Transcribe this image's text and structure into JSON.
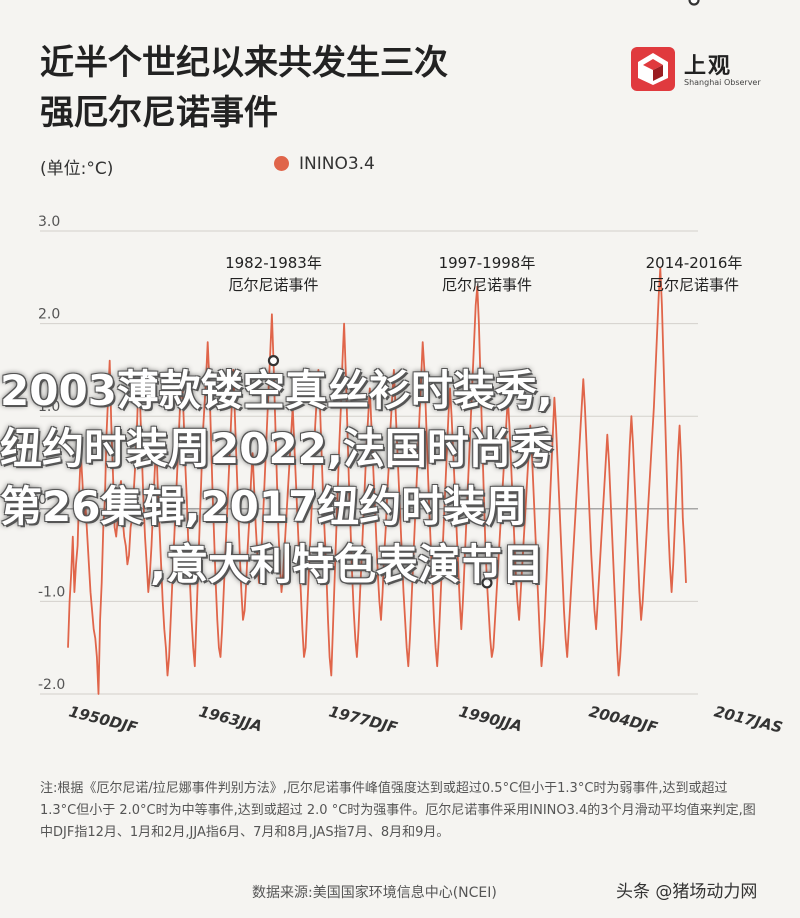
{
  "title": {
    "line1": "近半个世纪以来共发生三次",
    "line2": "强厄尔尼诺事件"
  },
  "logo": {
    "name": "上观",
    "subtitle": "Shanghai Observer"
  },
  "unit": "(单位:°C)",
  "legend": {
    "label": "ININO3.4",
    "color": "#e0654a"
  },
  "overlay_text": [
    "2003薄款镂空真丝衫时装秀,",
    "纽约时装周2022,法国时尚秀",
    "第26集辑,2017纽约时装周",
    ",意大利特色表演节目"
  ],
  "note": "注:根据《厄尔尼诺/拉尼娜事件判别方法》,厄尔尼诺事件峰值强度达到或超过0.5°C但小于1.3°C时为弱事件,达到或超过 1.3°C但小于 2.0°C时为中等事件,达到或超过 2.0 °C时为强事件。厄尔尼诺事件采用ININO3.4的3个月滑动平均值来判定,图中DJF指12月、1月和2月,JJA指6月、7月和8月,JAS指7月、8月和9月。",
  "source": "数据来源:美国国家环境信息中心(NCEI)",
  "watermark": "头条 @猪场动力网",
  "chart_data": {
    "type": "line",
    "series": [
      {
        "name": "ININO3.4",
        "color": "#e0654a"
      }
    ],
    "ylim": [
      -2.0,
      3.0
    ],
    "y_ticks": [
      "3.0",
      "2.0",
      "1.0",
      "0",
      "-1.0",
      "-2.0"
    ],
    "x_tick_labels": [
      "1950DJF",
      "1963JJA",
      "1977DJF",
      "1990JJA",
      "2004DJF",
      "2017JAS"
    ],
    "x_tick_index": [
      0,
      81,
      162,
      243,
      324,
      402
    ],
    "grid": true,
    "values": [
      -1.5,
      -1.0,
      -0.7,
      -0.3,
      -0.9,
      -0.6,
      -0.4,
      0.2,
      0.6,
      0.3,
      -0.1,
      0.0,
      -0.3,
      -0.6,
      -0.9,
      -1.1,
      -1.3,
      -1.4,
      -1.6,
      -2.0,
      -1.2,
      -0.8,
      -0.2,
      0.1,
      0.8,
      1.2,
      1.6,
      0.9,
      0.4,
      -0.2,
      -0.3,
      -0.1,
      0.2,
      0.3,
      -0.1,
      -0.3,
      -0.4,
      -0.6,
      -0.5,
      -0.2,
      -0.1,
      0.2,
      0.5,
      0.9,
      1.4,
      1.1,
      0.6,
      0.1,
      -0.3,
      -0.6,
      -0.9,
      -0.7,
      -0.4,
      0.0,
      0.4,
      0.7,
      0.2,
      -0.2,
      -0.6,
      -1.0,
      -1.3,
      -1.5,
      -1.8,
      -1.6,
      -1.2,
      -0.8,
      -0.4,
      0.0,
      0.4,
      0.8,
      1.2,
      1.4,
      1.0,
      0.5,
      0.1,
      -0.4,
      -0.8,
      -1.2,
      -1.5,
      -1.7,
      -1.2,
      -0.7,
      -0.2,
      0.3,
      0.8,
      1.1,
      1.4,
      1.8,
      1.4,
      0.8,
      0.2,
      -0.3,
      -0.8,
      -1.2,
      -1.5,
      -1.6,
      -1.3,
      -0.9,
      -0.5,
      -0.1,
      0.3,
      0.7,
      1.1,
      1.5,
      1.0,
      0.5,
      0.0,
      -0.5,
      -0.9,
      -1.2,
      -1.1,
      -0.8,
      -0.4,
      -0.1,
      0.3,
      0.6,
      0.2,
      -0.2,
      -0.5,
      -0.8,
      -0.6,
      -0.3,
      0.1,
      0.5,
      0.9,
      1.3,
      1.7,
      2.1,
      1.6,
      1.0,
      0.4,
      -0.2,
      -0.6,
      -0.9,
      -0.7,
      -0.4,
      -0.1,
      0.2,
      0.5,
      0.8,
      1.1,
      0.7,
      0.3,
      -0.1,
      -0.5,
      -0.9,
      -1.3,
      -1.6,
      -1.5,
      -1.1,
      -0.7,
      -0.3,
      0.1,
      0.5,
      0.9,
      1.2,
      1.5,
      1.1,
      0.6,
      0.1,
      -0.3,
      -0.7,
      -1.2,
      -1.6,
      -1.8,
      -1.3,
      -0.8,
      -0.3,
      0.2,
      0.7,
      1.1,
      1.6,
      2.0,
      1.5,
      0.9,
      0.3,
      -0.2,
      -0.7,
      -1.1,
      -1.4,
      -1.6,
      -1.3,
      -0.9,
      -0.5,
      -0.1,
      0.3,
      0.7,
      1.0,
      1.3,
      0.9,
      0.5,
      0.1,
      -0.3,
      -0.7,
      -1.0,
      -1.2,
      -0.9,
      -0.5,
      -0.2,
      0.2,
      0.5,
      0.9,
      1.2,
      1.5,
      1.1,
      0.7,
      0.3,
      -0.1,
      -0.5,
      -0.9,
      -1.2,
      -1.5,
      -1.7,
      -1.4,
      -1.0,
      -0.6,
      -0.2,
      0.2,
      0.6,
      1.0,
      1.4,
      1.8,
      1.5,
      1.0,
      0.5,
      0.0,
      -0.4,
      -0.8,
      -1.2,
      -1.5,
      -1.7,
      -1.4,
      -1.0,
      -0.6,
      -0.2,
      0.2,
      0.6,
      1.0,
      1.3,
      1.0,
      0.6,
      0.2,
      -0.2,
      -0.6,
      -1.0,
      -1.3,
      -1.0,
      -0.6,
      -0.2,
      0.2,
      0.6,
      1.0,
      1.4,
      1.8,
      2.2,
      2.4,
      2.0,
      1.4,
      0.8,
      0.2,
      -0.4,
      -0.8,
      -1.1,
      -1.4,
      -1.6,
      -1.5,
      -1.2,
      -0.9,
      -0.6,
      -0.3,
      0.0,
      0.3,
      0.6,
      0.9,
      1.2,
      0.9,
      0.5,
      0.1,
      -0.3,
      -0.7,
      -1.0,
      -1.2,
      -0.9,
      -0.6,
      -0.3,
      0.0,
      0.3,
      0.6,
      0.9,
      0.6,
      0.2,
      -0.2,
      -0.6,
      -1.0,
      -1.4,
      -1.7,
      -1.5,
      -1.2,
      -0.8,
      -0.4,
      0.0,
      0.4,
      0.8,
      1.2,
      0.9,
      0.5,
      0.1,
      -0.3,
      -0.7,
      -1.1,
      -1.4,
      -1.6,
      -1.3,
      -1.0,
      -0.7,
      -0.4,
      -0.1,
      0.2,
      0.5,
      0.8,
      1.1,
      1.4,
      1.1,
      0.7,
      0.3,
      -0.1,
      -0.5,
      -0.8,
      -1.1,
      -1.3,
      -1.0,
      -0.7,
      -0.4,
      -0.1,
      0.2,
      0.5,
      0.8,
      0.5,
      0.1,
      -0.3,
      -0.7,
      -1.1,
      -1.5,
      -1.8,
      -1.6,
      -1.3,
      -0.9,
      -0.5,
      -0.1,
      0.3,
      0.7,
      1.0,
      0.7,
      0.3,
      -0.1,
      -0.5,
      -0.9,
      -1.2,
      -1.0,
      -0.7,
      -0.4,
      -0.1,
      0.2,
      0.5,
      0.8,
      1.1,
      1.5,
      1.9,
      2.3,
      2.6,
      2.2,
      1.6,
      1.0,
      0.4,
      -0.2,
      -0.6,
      -0.9,
      -0.6,
      -0.2,
      0.2,
      0.6,
      0.9,
      0.5,
      -0.1,
      -0.4,
      -0.8
    ]
  },
  "events": [
    {
      "line1": "1982-1983年",
      "line2": "厄尔尼诺事件",
      "index": 128
    },
    {
      "line1": "1997-1998年",
      "line2": "厄尔尼诺事件",
      "index": 261
    },
    {
      "line1": "2014-2016年",
      "line2": "厄尔尼诺事件",
      "index": 390
    }
  ]
}
